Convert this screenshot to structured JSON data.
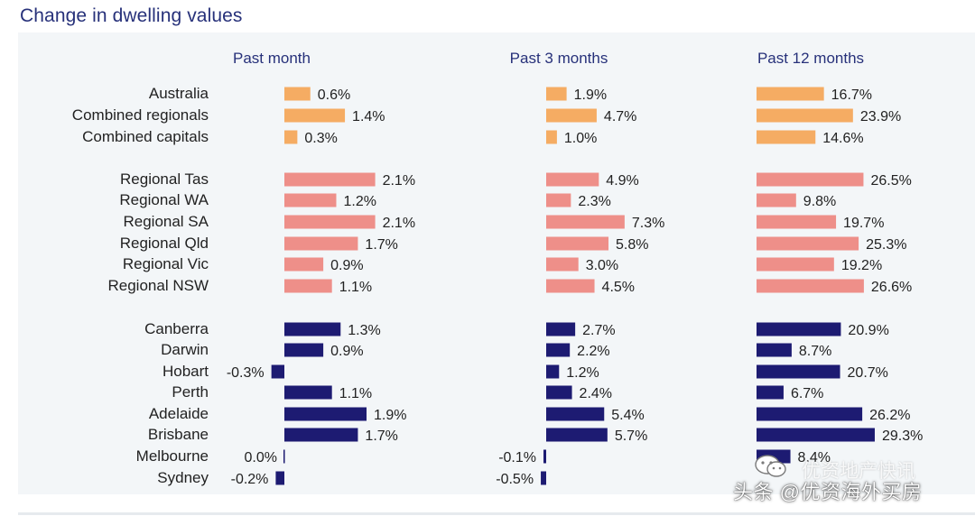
{
  "colors": {
    "title": "#27317a",
    "label": "#222222",
    "heading": "#27317a",
    "national": "#f5ac63",
    "regional": "#ee8f89",
    "capitals": "#1d1b72",
    "panel": "#f3f6f8"
  },
  "chart_data": {
    "type": "bar",
    "orientation": "horizontal",
    "title": "Change in dwelling values",
    "categories": [
      "Australia",
      "Combined regionals",
      "Combined capitals",
      "Regional Tas",
      "Regional WA",
      "Regional SA",
      "Regional Qld",
      "Regional Vic",
      "Regional NSW",
      "Canberra",
      "Darwin",
      "Hobart",
      "Perth",
      "Adelaide",
      "Brisbane",
      "Melbourne",
      "Sydney"
    ],
    "groups": [
      "national",
      "national",
      "national",
      "regional",
      "regional",
      "regional",
      "regional",
      "regional",
      "regional",
      "capitals",
      "capitals",
      "capitals",
      "capitals",
      "capitals",
      "capitals",
      "capitals",
      "capitals"
    ],
    "series": [
      {
        "name": "Past month",
        "values": [
          0.6,
          1.4,
          0.3,
          2.1,
          1.2,
          2.1,
          1.7,
          0.9,
          1.1,
          1.3,
          0.9,
          -0.3,
          1.1,
          1.9,
          1.7,
          0.0,
          -0.2
        ],
        "labels": [
          "0.6%",
          "1.4%",
          "0.3%",
          "2.1%",
          "1.2%",
          "2.1%",
          "1.7%",
          "0.9%",
          "1.1%",
          "1.3%",
          "0.9%",
          "-0.3%",
          "1.1%",
          "1.9%",
          "1.7%",
          "0.0%",
          "-0.2%"
        ]
      },
      {
        "name": "Past 3 months",
        "values": [
          1.9,
          4.7,
          1.0,
          4.9,
          2.3,
          7.3,
          5.8,
          3.0,
          4.5,
          2.7,
          2.2,
          1.2,
          2.4,
          5.4,
          5.7,
          -0.1,
          -0.5
        ],
        "labels": [
          "1.9%",
          "4.7%",
          "1.0%",
          "4.9%",
          "2.3%",
          "7.3%",
          "5.8%",
          "3.0%",
          "4.5%",
          "2.7%",
          "2.2%",
          "1.2%",
          "2.4%",
          "5.4%",
          "5.7%",
          "-0.1%",
          "-0.5%"
        ]
      },
      {
        "name": "Past 12 months",
        "values": [
          16.7,
          23.9,
          14.6,
          26.5,
          9.8,
          19.7,
          25.3,
          19.2,
          26.6,
          20.9,
          8.7,
          20.7,
          6.7,
          26.2,
          29.3,
          8.4,
          null
        ],
        "labels": [
          "16.7%",
          "23.9%",
          "14.6%",
          "26.5%",
          "9.8%",
          "19.7%",
          "25.3%",
          "19.2%",
          "26.6%",
          "20.9%",
          "8.7%",
          "20.7%",
          "6.7%",
          "26.2%",
          "29.3%",
          "8.4%",
          ""
        ]
      }
    ]
  },
  "watermark": {
    "text": "头条 @优资海外买房",
    "faint_text": "优资地产快讯"
  }
}
